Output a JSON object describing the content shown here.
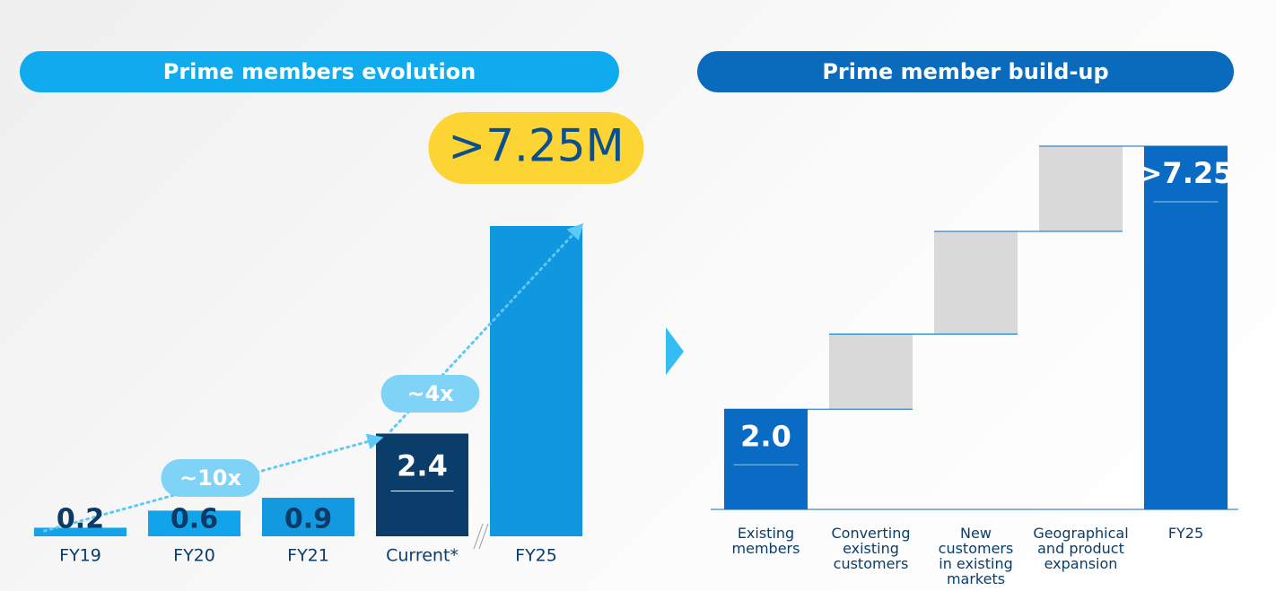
{
  "chart_data": [
    {
      "type": "bar",
      "title": "Prime members evolution",
      "categories": [
        "FY19",
        "FY20",
        "FY21",
        "Current*",
        "FY25"
      ],
      "values": [
        0.2,
        0.6,
        0.9,
        2.4,
        7.25
      ],
      "value_labels": [
        "0.2",
        "0.6",
        "0.9",
        "2.4",
        ">7.25M"
      ],
      "colors": [
        "#12a4ea",
        "#12a4ea",
        "#1299e0",
        "#0b3d6b",
        "#1196e0"
      ],
      "annotations": [
        "~10x",
        "~4x"
      ],
      "ylim": [
        0,
        7.25
      ]
    },
    {
      "type": "waterfall",
      "title": "Prime member build-up",
      "categories": [
        "Existing\nmembers",
        "Converting\nexisting\ncustomers",
        "New\ncustomers\nin existing\nmarkets",
        "Geographical\nand product\nexpansion",
        "FY25"
      ],
      "values": [
        2.0,
        1.5,
        2.05,
        1.7,
        7.25
      ],
      "value_labels": [
        "2.0",
        null,
        null,
        null,
        ">7.25"
      ],
      "measure": [
        "absolute",
        "relative",
        "relative",
        "relative",
        "total"
      ],
      "colors": [
        "#0a6bc4",
        "#d9d9d9",
        "#d9d9d9",
        "#d9d9d9",
        "#0a6bc4"
      ],
      "ylim": [
        0,
        7.25
      ]
    }
  ]
}
